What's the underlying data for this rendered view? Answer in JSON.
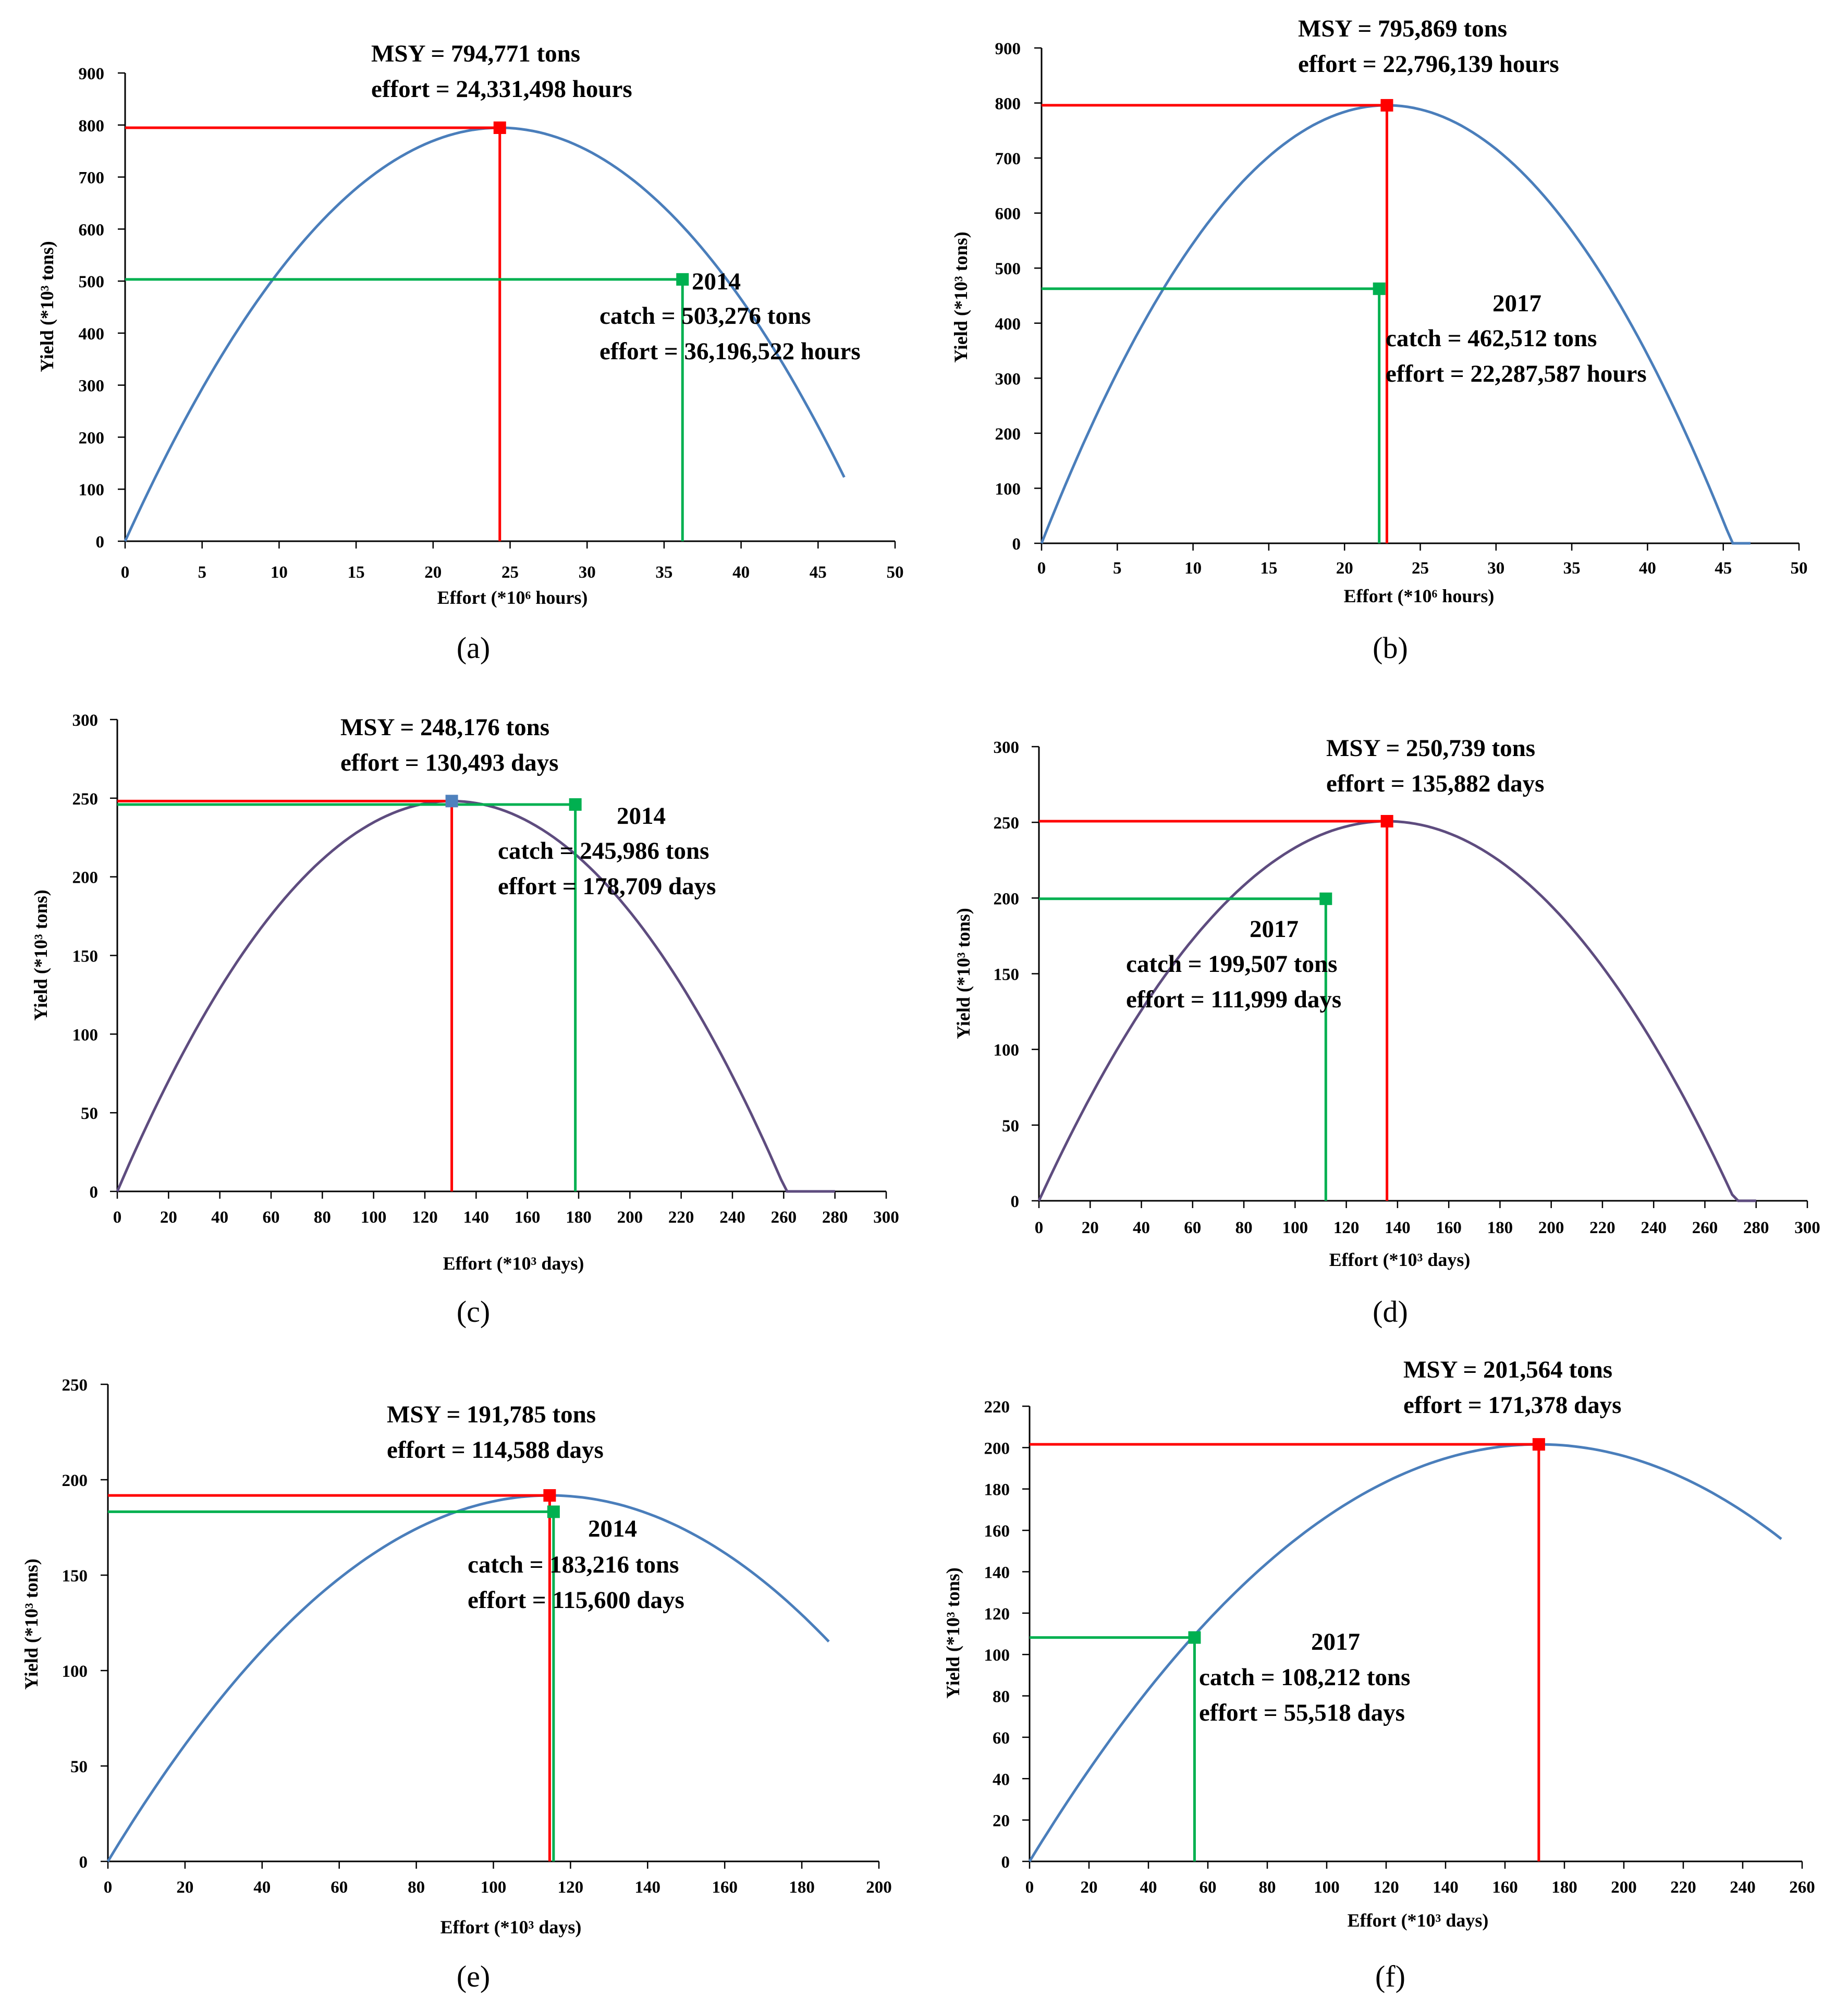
{
  "colors": {
    "curve_blue": "#4a7ebb",
    "curve_purple": "#5e4c7f",
    "msy_red": "#ff0000",
    "catch_green": "#00b050",
    "marker_blue": "#4f81bd",
    "axis": "#000000"
  },
  "chart_data": [
    {
      "type": "line",
      "panel_label": "(a)",
      "xlabel": "Effort (*10⁶ hours)",
      "ylabel": "Yield (*10³ tons)",
      "xlim": [
        0,
        50
      ],
      "ylim": [
        0,
        900
      ],
      "xticks": [
        0,
        5,
        10,
        15,
        20,
        25,
        30,
        35,
        40,
        45,
        50
      ],
      "yticks": [
        0,
        100,
        200,
        300,
        400,
        500,
        600,
        700,
        800,
        900
      ],
      "curve": {
        "msy": 794.771,
        "emsy": 24.331,
        "xmax": 46.7,
        "color": "curve_blue"
      },
      "msy_point": {
        "x": 24.331,
        "y": 794.771,
        "color": "msy_red"
      },
      "catch_point": {
        "x": 36.197,
        "y": 503.276,
        "color": "catch_green"
      },
      "annotations": {
        "msy_lines": [
          "MSY = 794,771 tons",
          "effort = 24,331,498 hours"
        ],
        "catch_lines": [
          "2014",
          "catch = 503,276 tons",
          "effort = 36,196,522 hours"
        ]
      }
    },
    {
      "type": "line",
      "panel_label": "(b)",
      "xlabel": "Effort (*10⁶ hours)",
      "ylabel": "Yield (*10³ tons)",
      "xlim": [
        0,
        50
      ],
      "ylim": [
        0,
        900
      ],
      "xticks": [
        0,
        5,
        10,
        15,
        20,
        25,
        30,
        35,
        40,
        45,
        50
      ],
      "yticks": [
        0,
        100,
        200,
        300,
        400,
        500,
        600,
        700,
        800,
        900
      ],
      "curve": {
        "msy": 795.869,
        "emsy": 22.796,
        "xmax": 46.8,
        "color": "curve_blue"
      },
      "msy_point": {
        "x": 22.796,
        "y": 795.869,
        "color": "msy_red"
      },
      "catch_point": {
        "x": 22.288,
        "y": 462.512,
        "color": "catch_green"
      },
      "annotations": {
        "msy_lines": [
          "MSY = 795,869 tons",
          "effort = 22,796,139 hours"
        ],
        "catch_lines": [
          "2017",
          "catch = 462,512 tons",
          "effort = 22,287,587 hours"
        ]
      }
    },
    {
      "type": "line",
      "panel_label": "(c)",
      "xlabel": "Effort (*10³ days)",
      "ylabel": "Yield (*10³ tons)",
      "xlim": [
        0,
        300
      ],
      "ylim": [
        0,
        300
      ],
      "xticks": [
        0,
        20,
        40,
        60,
        80,
        100,
        120,
        140,
        160,
        180,
        200,
        220,
        240,
        260,
        280,
        300
      ],
      "yticks": [
        0,
        50,
        100,
        150,
        200,
        250,
        300
      ],
      "curve": {
        "msy": 248.176,
        "emsy": 130.493,
        "xmax": 280,
        "color": "curve_purple"
      },
      "msy_point": {
        "x": 130.493,
        "y": 248.176,
        "color": "marker_blue"
      },
      "catch_point": {
        "x": 178.709,
        "y": 245.986,
        "color": "catch_green"
      },
      "annotations": {
        "msy_lines": [
          "MSY = 248,176 tons",
          "effort = 130,493 days"
        ],
        "catch_lines": [
          "2014",
          "catch = 245,986 tons",
          "effort = 178,709 days"
        ]
      }
    },
    {
      "type": "line",
      "panel_label": "(d)",
      "xlabel": "Effort (*10³ days)",
      "ylabel": "Yield (*10³ tons)",
      "xlim": [
        0,
        300
      ],
      "ylim": [
        0,
        300
      ],
      "xticks": [
        0,
        20,
        40,
        60,
        80,
        100,
        120,
        140,
        160,
        180,
        200,
        220,
        240,
        260,
        280,
        300
      ],
      "yticks": [
        0,
        50,
        100,
        150,
        200,
        250,
        300
      ],
      "curve": {
        "msy": 250.739,
        "emsy": 135.882,
        "xmax": 280,
        "color": "curve_purple"
      },
      "msy_point": {
        "x": 135.882,
        "y": 250.739,
        "color": "msy_red"
      },
      "catch_point": {
        "x": 111.999,
        "y": 199.507,
        "color": "catch_green"
      },
      "annotations": {
        "msy_lines": [
          "MSY = 250,739 tons",
          "effort = 135,882 days"
        ],
        "catch_lines": [
          "2017",
          "catch = 199,507 tons",
          "effort = 111,999 days"
        ]
      }
    },
    {
      "type": "line",
      "panel_label": "(e)",
      "xlabel": "Effort (*10³ days)",
      "ylabel": "Yield (*10³ tons)",
      "xlim": [
        0,
        200
      ],
      "ylim": [
        0,
        250
      ],
      "xticks": [
        0,
        20,
        40,
        60,
        80,
        100,
        120,
        140,
        160,
        180,
        200
      ],
      "yticks": [
        0,
        50,
        100,
        150,
        200,
        250
      ],
      "curve": {
        "msy": 191.785,
        "emsy": 114.588,
        "xmax": 187,
        "color": "curve_blue"
      },
      "msy_point": {
        "x": 114.588,
        "y": 191.785,
        "color": "msy_red"
      },
      "catch_point": {
        "x": 115.6,
        "y": 183.216,
        "color": "catch_green"
      },
      "annotations": {
        "msy_lines": [
          "MSY = 191,785 tons",
          "effort = 114,588 days"
        ],
        "catch_lines": [
          "2014",
          "catch = 183,216 tons",
          "effort = 115,600 days"
        ]
      }
    },
    {
      "type": "line",
      "panel_label": "(f)",
      "xlabel": "Effort (*10³ days)",
      "ylabel": "Yield (*10³ tons)",
      "xlim": [
        0,
        260
      ],
      "ylim": [
        0,
        220
      ],
      "xticks": [
        0,
        20,
        40,
        60,
        80,
        100,
        120,
        140,
        160,
        180,
        200,
        220,
        240,
        260
      ],
      "yticks": [
        0,
        20,
        40,
        60,
        80,
        100,
        120,
        140,
        160,
        180,
        200,
        220
      ],
      "curve": {
        "msy": 201.564,
        "emsy": 171.378,
        "xmax": 253,
        "color": "curve_blue"
      },
      "msy_point": {
        "x": 171.378,
        "y": 201.564,
        "color": "msy_red"
      },
      "catch_point": {
        "x": 55.518,
        "y": 108.212,
        "color": "catch_green"
      },
      "annotations": {
        "msy_lines": [
          "MSY = 201,564 tons",
          "effort = 171,378 days"
        ],
        "catch_lines": [
          "2017",
          "catch = 108,212 tons",
          "effort = 55,518 days"
        ]
      }
    }
  ]
}
